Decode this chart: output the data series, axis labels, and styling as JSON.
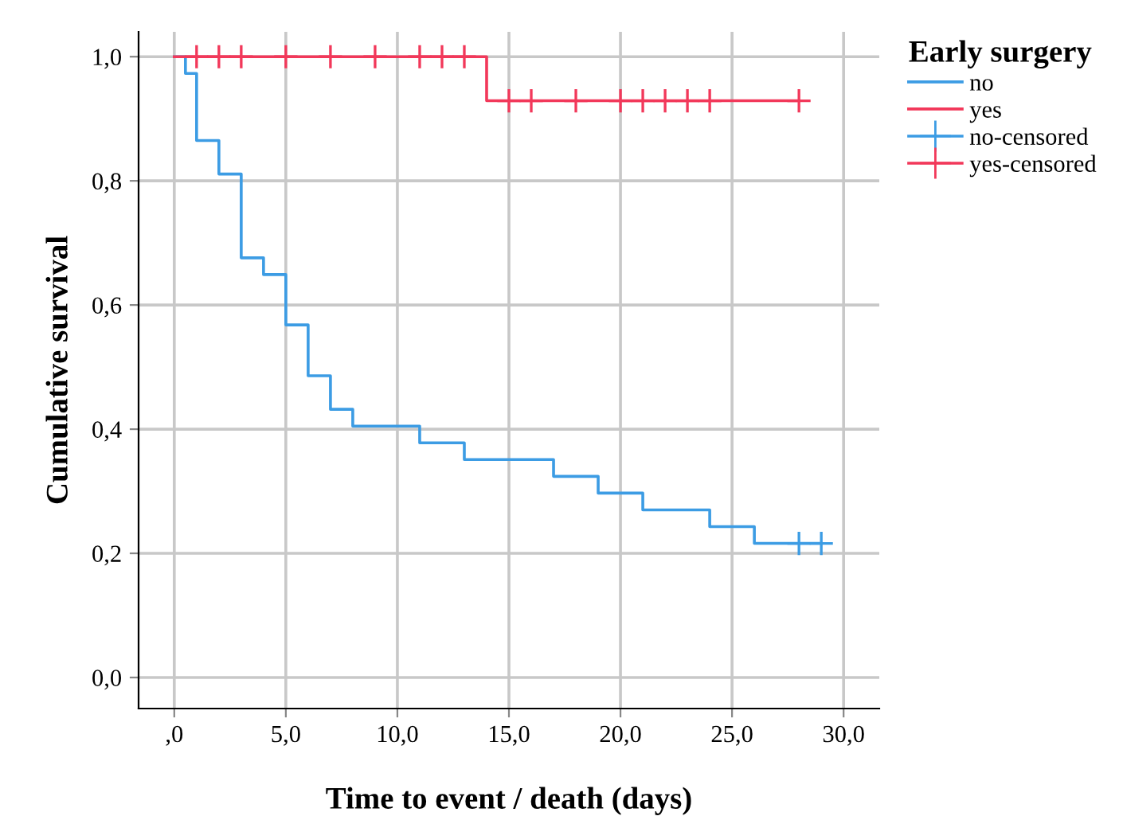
{
  "chart_data": {
    "type": "step",
    "xlabel": "Time to event / death (days)",
    "ylabel": "Cumulative survival",
    "legend_title": "Early surgery",
    "series": [
      {
        "name": "no",
        "color": "#3c9ce4",
        "x": [
          0,
          0.5,
          1,
          2,
          3,
          4,
          5,
          6,
          7,
          8,
          11,
          13,
          17,
          19,
          21,
          24,
          26,
          29
        ],
        "values": [
          1,
          0.973,
          0.865,
          0.811,
          0.676,
          0.649,
          0.568,
          0.486,
          0.432,
          0.405,
          0.378,
          0.351,
          0.324,
          0.297,
          0.27,
          0.243,
          0.216,
          0.216
        ]
      },
      {
        "name": "yes",
        "color": "#f2385a",
        "x": [
          0,
          14,
          28
        ],
        "values": [
          1,
          0.929,
          0.929
        ]
      },
      {
        "name": "no-censored",
        "type": "scatter",
        "marker": "cross",
        "color": "#3c9ce4",
        "x": [
          28,
          29
        ],
        "values": [
          0.216,
          0.216
        ]
      },
      {
        "name": "yes-censored",
        "type": "scatter",
        "marker": "cross",
        "color": "#f2385a",
        "x": [
          1,
          2,
          3,
          5,
          7,
          9,
          11,
          12,
          13,
          15,
          16,
          18,
          20,
          21,
          22,
          23,
          24,
          28
        ],
        "values": [
          1,
          1,
          1,
          1,
          1,
          1,
          1,
          1,
          1,
          0.929,
          0.929,
          0.929,
          0.929,
          0.929,
          0.929,
          0.929,
          0.929,
          0.929
        ]
      }
    ],
    "xlim": [
      -1.6,
      31.6
    ],
    "ylim": [
      -0.05,
      1.04
    ],
    "xticks": [
      {
        "value": 0,
        "label": ",0"
      },
      {
        "value": 5,
        "label": "5,0"
      },
      {
        "value": 10,
        "label": "10,0"
      },
      {
        "value": 15,
        "label": "15,0"
      },
      {
        "value": 20,
        "label": "20,0"
      },
      {
        "value": 25,
        "label": "25,0"
      },
      {
        "value": 30,
        "label": "30,0"
      }
    ],
    "yticks": [
      {
        "value": 0,
        "label": "0,0"
      },
      {
        "value": 0.2,
        "label": "0,2"
      },
      {
        "value": 0.4,
        "label": "0,4"
      },
      {
        "value": 0.6,
        "label": "0,6"
      },
      {
        "value": 0.8,
        "label": "0,8"
      },
      {
        "value": 1.0,
        "label": "1,0"
      }
    ],
    "grid": true,
    "legend": "right"
  }
}
